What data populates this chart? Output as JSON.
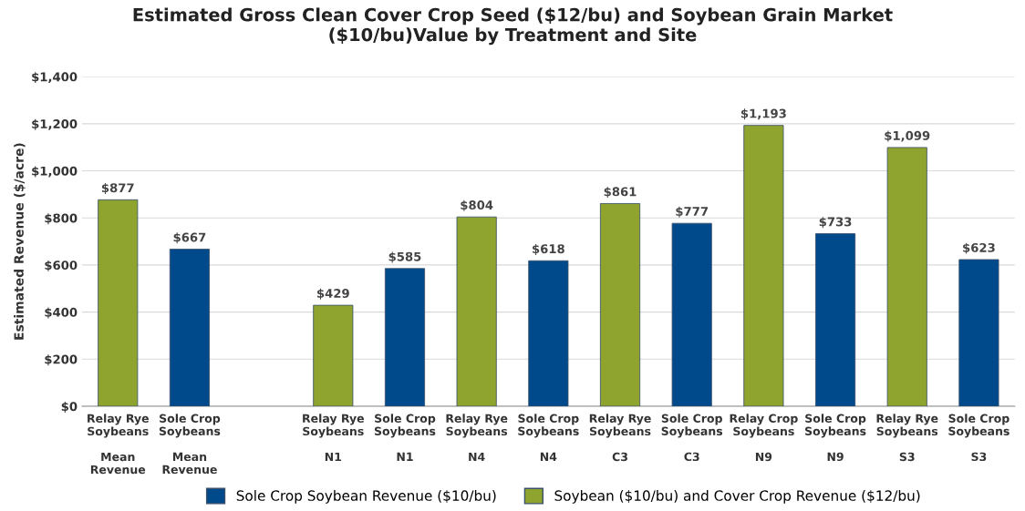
{
  "chart_data": {
    "type": "bar",
    "title": "Estimated Gross Clean Cover Crop Seed ($12/bu) and Soybean Grain Market\n($10/bu)Value by Treatment and Site",
    "ylabel": "Estimated Revenue ($/acre)",
    "categories": [
      "Relay Rye\nSoybeans\n\nMean\nRevenue",
      "Sole Crop\nSoybeans\n\nMean\nRevenue",
      null,
      "Relay Rye\nSoybeans\n\nN1",
      "Sole Crop\nSoybeans\n\nN1",
      "Relay Rye\nSoybeans\n\nN4",
      "Sole Crop\nSoybeans\n\nN4",
      "Relay Rye\nSoybeans\n\nC3",
      "Sole Crop\nSoybeans\n\nC3",
      "Relay Crop\nSoybeans\n\nN9",
      "Sole Crop\nSoybeans\n\nN9",
      "Relay Rye\nSoybeans\n\nS3",
      "Sole Crop\nSoybeans\n\nS3"
    ],
    "series": [
      {
        "name": "Sole Crop Soybean Revenue ($10/bu)",
        "color": "#004a8c",
        "values": [
          null,
          667,
          null,
          null,
          585,
          null,
          618,
          null,
          777,
          null,
          733,
          null,
          623
        ],
        "value_labels": [
          null,
          "$667",
          null,
          null,
          "$585",
          null,
          "$618",
          null,
          "$777",
          null,
          "$733",
          null,
          "$623"
        ]
      },
      {
        "name": "Soybean ($10/bu) and Cover Crop Revenue ($12/bu)",
        "color": "#8fa42e",
        "values": [
          877,
          null,
          null,
          429,
          null,
          804,
          null,
          861,
          null,
          1193,
          null,
          1099,
          null
        ],
        "value_labels": [
          "$877",
          null,
          null,
          "$429",
          null,
          "$804",
          null,
          "$861",
          null,
          "$1,193",
          null,
          "$1,099",
          null
        ]
      }
    ],
    "ylim": [
      0,
      1400
    ],
    "yticks": [
      {
        "value": 0,
        "label": "$0"
      },
      {
        "value": 200,
        "label": "$200"
      },
      {
        "value": 400,
        "label": "$400"
      },
      {
        "value": 600,
        "label": "$600"
      },
      {
        "value": 800,
        "label": "$800"
      },
      {
        "value": 1000,
        "label": "$1,000"
      },
      {
        "value": 1200,
        "label": "$1,200"
      },
      {
        "value": 1400,
        "label": "$1,400"
      }
    ],
    "grid": "y",
    "legend": "bottom"
  }
}
